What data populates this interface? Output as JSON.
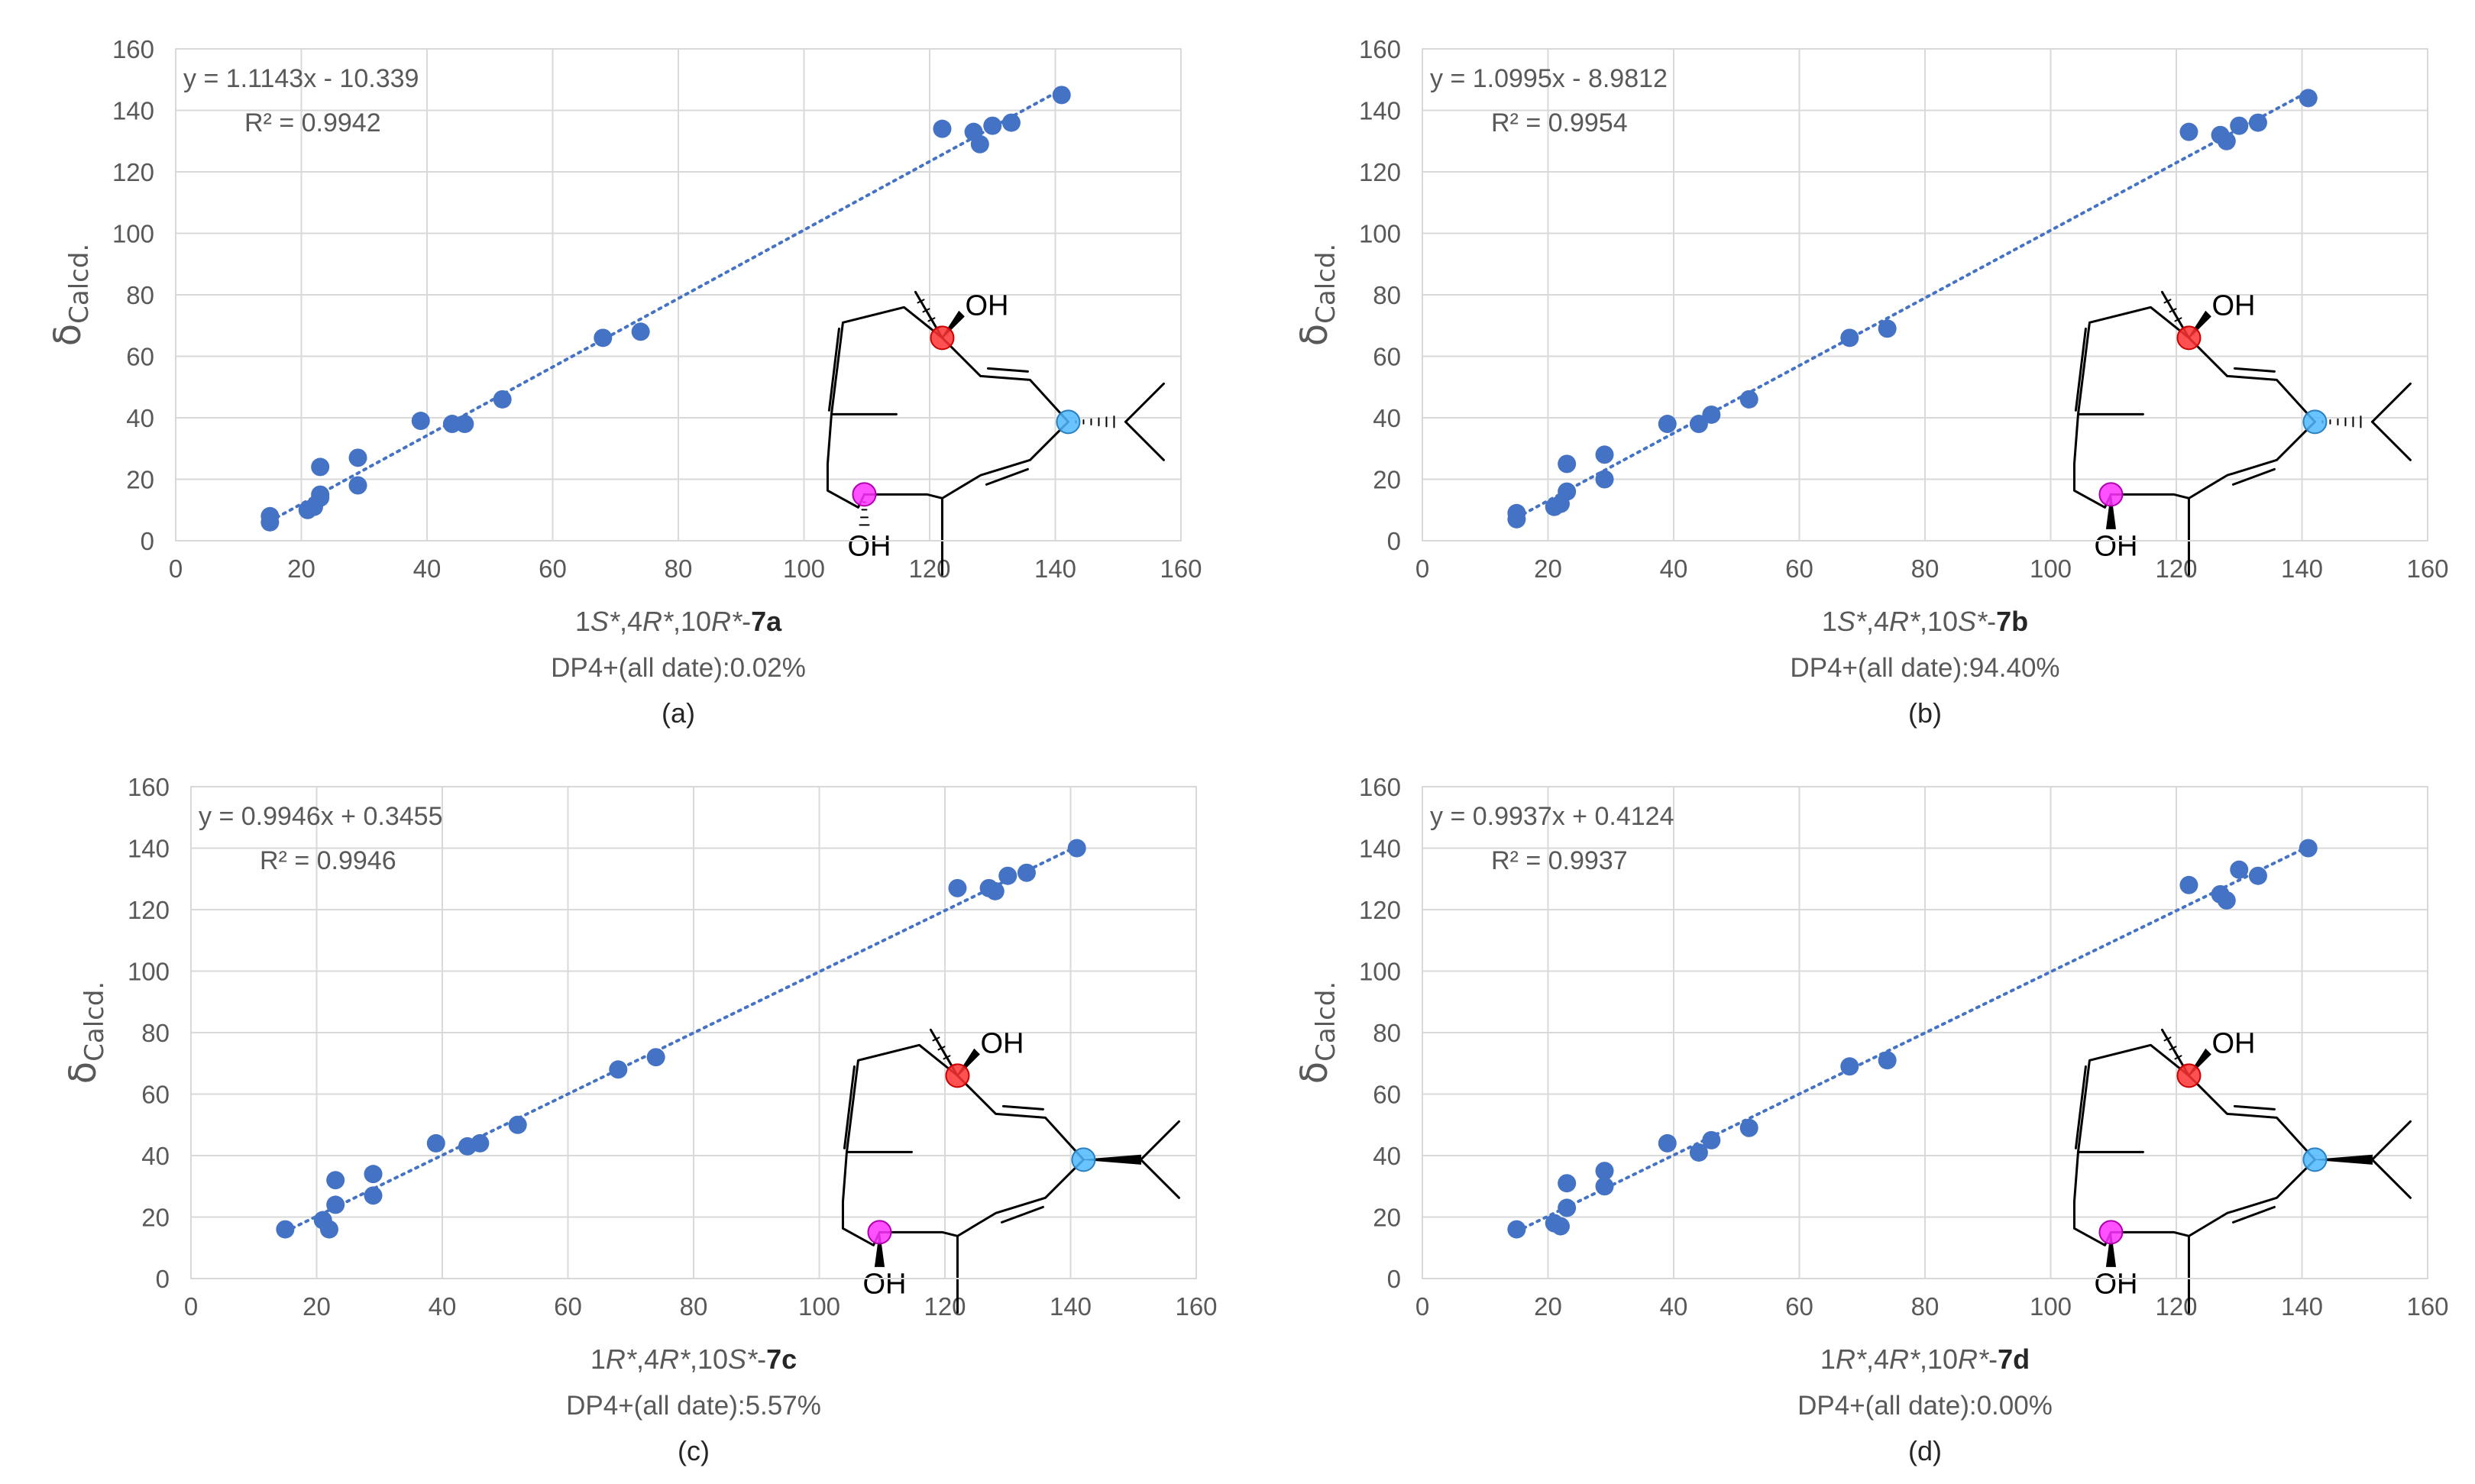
{
  "chart_data": [
    {
      "type": "scatter",
      "panel_label": "(a)",
      "ylabel": "δ",
      "ylabel_sub": "Calcd.",
      "xlabel_parts": [
        {
          "text": "1",
          "italic": false,
          "bold": false
        },
        {
          "text": "S*",
          "italic": true,
          "bold": false
        },
        {
          "text": ",4",
          "italic": false,
          "bold": false
        },
        {
          "text": "R*",
          "italic": true,
          "bold": false
        },
        {
          "text": ",10",
          "italic": false,
          "bold": false
        },
        {
          "text": "R*",
          "italic": true,
          "bold": false
        },
        {
          "text": "-",
          "italic": false,
          "bold": false
        },
        {
          "text": "7a",
          "italic": false,
          "bold": true
        }
      ],
      "dp4": "DP4+(all date):0.02%",
      "equation": "y = 1.1143x - 10.339",
      "r2": "R² = 0.9942",
      "slope": 1.1143,
      "intercept": -10.339,
      "xlim": [
        0,
        160
      ],
      "ylim": [
        0,
        160
      ],
      "xticks": [
        0,
        20,
        40,
        60,
        80,
        100,
        120,
        140,
        160
      ],
      "yticks": [
        0,
        20,
        40,
        60,
        80,
        100,
        120,
        140,
        160
      ],
      "grid": true,
      "trendline": {
        "style": "dotted",
        "x_range": [
          15,
          141
        ]
      },
      "x": [
        15,
        15,
        21,
        22,
        23,
        23,
        23,
        29,
        29,
        39,
        44,
        46,
        52,
        68,
        74,
        122,
        127,
        128,
        130,
        133,
        141
      ],
      "y": [
        6,
        8,
        10,
        11,
        24,
        14,
        15,
        27,
        18,
        39,
        38,
        38,
        46,
        66,
        68,
        134,
        133,
        129,
        135,
        136,
        145
      ],
      "stereo": {
        "top_OH": "hash",
        "bottom_OH": "hash",
        "isopropyl": "hash"
      }
    },
    {
      "type": "scatter",
      "panel_label": "(b)",
      "ylabel": "δ",
      "ylabel_sub": "Calcd.",
      "xlabel_parts": [
        {
          "text": "1",
          "italic": false,
          "bold": false
        },
        {
          "text": "S*",
          "italic": true,
          "bold": false
        },
        {
          "text": ",4",
          "italic": false,
          "bold": false
        },
        {
          "text": "R*",
          "italic": true,
          "bold": false
        },
        {
          "text": ",10",
          "italic": false,
          "bold": false
        },
        {
          "text": "S*",
          "italic": true,
          "bold": false
        },
        {
          "text": "-",
          "italic": false,
          "bold": false
        },
        {
          "text": "7b",
          "italic": false,
          "bold": true
        }
      ],
      "dp4": "DP4+(all date):94.40%",
      "equation": "y = 1.0995x - 8.9812",
      "r2": "R² = 0.9954",
      "slope": 1.0995,
      "intercept": -8.9812,
      "xlim": [
        0,
        160
      ],
      "ylim": [
        0,
        160
      ],
      "xticks": [
        0,
        20,
        40,
        60,
        80,
        100,
        120,
        140,
        160
      ],
      "yticks": [
        0,
        20,
        40,
        60,
        80,
        100,
        120,
        140,
        160
      ],
      "grid": true,
      "trendline": {
        "style": "dotted",
        "x_range": [
          15,
          141
        ]
      },
      "x": [
        15,
        15,
        21,
        22,
        23,
        23,
        29,
        29,
        39,
        44,
        46,
        52,
        68,
        74,
        122,
        127,
        128,
        130,
        133,
        141
      ],
      "y": [
        7,
        9,
        11,
        12,
        25,
        16,
        28,
        20,
        38,
        38,
        41,
        46,
        66,
        69,
        133,
        132,
        130,
        135,
        136,
        144
      ],
      "stereo": {
        "top_OH": "hash",
        "bottom_OH": "wedge",
        "isopropyl": "hash"
      }
    },
    {
      "type": "scatter",
      "panel_label": "(c)",
      "ylabel": "δ",
      "ylabel_sub": "Calcd.",
      "xlabel_parts": [
        {
          "text": "1",
          "italic": false,
          "bold": false
        },
        {
          "text": "R*",
          "italic": true,
          "bold": false
        },
        {
          "text": ",4",
          "italic": false,
          "bold": false
        },
        {
          "text": "R*",
          "italic": true,
          "bold": false
        },
        {
          "text": ",10",
          "italic": false,
          "bold": false
        },
        {
          "text": "S*",
          "italic": true,
          "bold": false
        },
        {
          "text": "-",
          "italic": false,
          "bold": false
        },
        {
          "text": "7c",
          "italic": false,
          "bold": true
        }
      ],
      "dp4": "DP4+(all date):5.57%",
      "equation": "y = 0.9946x + 0.3455",
      "r2": "R² = 0.9946",
      "slope": 0.9946,
      "intercept": 0.3455,
      "xlim": [
        0,
        160
      ],
      "ylim": [
        0,
        160
      ],
      "xticks": [
        0,
        20,
        40,
        60,
        80,
        100,
        120,
        140,
        160
      ],
      "yticks": [
        0,
        20,
        40,
        60,
        80,
        100,
        120,
        140,
        160
      ],
      "grid": true,
      "trendline": {
        "style": "dotted",
        "x_range": [
          15,
          141
        ]
      },
      "x": [
        15,
        21,
        22,
        23,
        23,
        29,
        29,
        39,
        44,
        46,
        52,
        68,
        74,
        122,
        127,
        128,
        130,
        133,
        141
      ],
      "y": [
        16,
        19,
        16,
        24,
        32,
        27,
        34,
        44,
        43,
        44,
        50,
        68,
        72,
        127,
        127,
        126,
        131,
        132,
        140
      ],
      "stereo": {
        "top_OH": "hash",
        "bottom_OH": "wedge",
        "isopropyl": "wedge"
      }
    },
    {
      "type": "scatter",
      "panel_label": "(d)",
      "ylabel": "δ",
      "ylabel_sub": "Calcd.",
      "xlabel_parts": [
        {
          "text": "1",
          "italic": false,
          "bold": false
        },
        {
          "text": "R*",
          "italic": true,
          "bold": false
        },
        {
          "text": ",4",
          "italic": false,
          "bold": false
        },
        {
          "text": "R*",
          "italic": true,
          "bold": false
        },
        {
          "text": ",10",
          "italic": false,
          "bold": false
        },
        {
          "text": "R*",
          "italic": true,
          "bold": false
        },
        {
          "text": "-",
          "italic": false,
          "bold": false
        },
        {
          "text": "7d",
          "italic": false,
          "bold": true
        }
      ],
      "dp4": "DP4+(all date):0.00%",
      "equation": "y = 0.9937x + 0.4124",
      "r2": "R² = 0.9937",
      "slope": 0.9937,
      "intercept": 0.4124,
      "xlim": [
        0,
        160
      ],
      "ylim": [
        0,
        160
      ],
      "xticks": [
        0,
        20,
        40,
        60,
        80,
        100,
        120,
        140,
        160
      ],
      "yticks": [
        0,
        20,
        40,
        60,
        80,
        100,
        120,
        140,
        160
      ],
      "grid": true,
      "trendline": {
        "style": "dotted",
        "x_range": [
          15,
          141
        ]
      },
      "x": [
        15,
        21,
        22,
        23,
        23,
        29,
        29,
        39,
        44,
        46,
        52,
        68,
        74,
        122,
        127,
        128,
        130,
        133,
        141
      ],
      "y": [
        16,
        18,
        17,
        23,
        31,
        30,
        35,
        44,
        41,
        45,
        49,
        69,
        71,
        128,
        125,
        123,
        133,
        131,
        140
      ],
      "stereo": {
        "top_OH": "hash",
        "bottom_OH": "wedge",
        "isopropyl": "wedge"
      }
    }
  ],
  "molecule": {
    "oh_label": "OH",
    "colors": {
      "marker_red": "#ff3333",
      "marker_magenta": "#ff33ff",
      "marker_blue": "#4db8ff"
    }
  },
  "colors": {
    "points": "#4472c4",
    "trendline": "#4472c4",
    "grid": "#d9d9d9",
    "text": "#595959"
  }
}
